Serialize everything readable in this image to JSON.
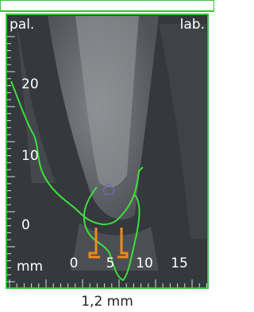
{
  "view": {
    "orientation": {
      "left": "pal.",
      "right": "lab."
    },
    "vertical_scale": [
      "20",
      "10",
      "0"
    ],
    "horizontal_scale": {
      "unit": "mm",
      "labels": [
        "0",
        "5",
        "10",
        "15"
      ]
    },
    "slice_thickness": "1,2 mm"
  }
}
